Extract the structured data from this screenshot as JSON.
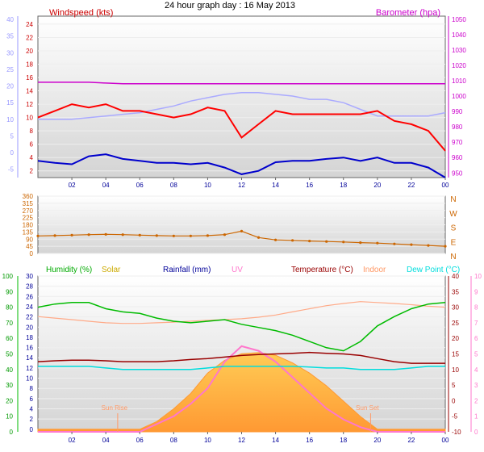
{
  "title": "24 hour graph day : 16 May 2013",
  "x_ticks": [
    "02",
    "04",
    "06",
    "08",
    "10",
    "12",
    "14",
    "16",
    "18",
    "20",
    "22",
    "00"
  ],
  "colors": {
    "wind": "#ff0000",
    "wind_low": "#0000cc",
    "baro": "#cc00cc",
    "outer_left": "#9999ff",
    "dir": "#cc6600",
    "humidity": "#00bb00",
    "solar": "#ccaa00",
    "rain": "#000099",
    "uv": "#ff77cc",
    "temp": "#990000",
    "indoor": "#ff9966",
    "dew": "#00dddd",
    "tick": "#000099",
    "frame": "#666666"
  },
  "chart_data": [
    {
      "type": "line",
      "name": "wind-barometer",
      "labels": {
        "wind": "Windspeed (kts)",
        "baro": "Barometer (hpa)"
      },
      "wind_axis": {
        "ticks": [
          2,
          4,
          6,
          8,
          10,
          12,
          14,
          16,
          18,
          20,
          22,
          24
        ],
        "ylim": [
          1,
          25.2
        ]
      },
      "outer_axis": {
        "ticks": [
          -5,
          0,
          5,
          10,
          15,
          20,
          25,
          30,
          35,
          40
        ],
        "ylim": [
          -7.5,
          41
        ]
      },
      "baro_axis": {
        "ticks": [
          950,
          960,
          970,
          980,
          990,
          1000,
          1010,
          1020,
          1030,
          1040,
          1050
        ],
        "ylim": [
          947,
          1052
        ]
      },
      "x": [
        0,
        1,
        2,
        3,
        4,
        5,
        6,
        7,
        8,
        9,
        10,
        11,
        12,
        13,
        14,
        15,
        16,
        17,
        18,
        19,
        20,
        21,
        22,
        23,
        24
      ],
      "wind_gust": [
        10,
        11,
        12,
        11.5,
        12,
        11,
        11,
        10.5,
        10,
        10.5,
        11.5,
        11,
        7,
        9,
        11,
        10.5,
        10.5,
        10.5,
        10.5,
        10.5,
        11,
        9.5,
        9,
        8,
        5
      ],
      "wind_avg": [
        3.5,
        3.2,
        3,
        4.2,
        4.5,
        3.8,
        3.5,
        3.2,
        3.2,
        3,
        3.2,
        2.5,
        1.5,
        2,
        3.3,
        3.5,
        3.5,
        3.8,
        4,
        3.5,
        4,
        3.2,
        3.2,
        2.5,
        1
      ],
      "baro": [
        1009,
        1009,
        1009,
        1009,
        1008.5,
        1008,
        1008,
        1008,
        1008,
        1008,
        1008,
        1008,
        1008,
        1008,
        1008,
        1008,
        1008,
        1008,
        1008,
        1008,
        1008,
        1008,
        1008,
        1008,
        1008
      ],
      "outer_series": [
        10,
        10,
        10,
        10.5,
        11,
        11.5,
        12,
        13,
        14,
        15.5,
        16.5,
        17.5,
        18,
        18,
        17.5,
        17,
        16,
        16,
        15,
        13,
        11,
        11,
        11,
        11,
        12
      ]
    },
    {
      "type": "scatter",
      "name": "wind-direction",
      "y_ticks": [
        0,
        45,
        90,
        135,
        180,
        225,
        270,
        315,
        360
      ],
      "y_tick_labels": [
        "0",
        "45",
        "90",
        "135",
        "180",
        "225",
        "270",
        "315",
        "360"
      ],
      "ylim": [
        0,
        360
      ],
      "compass": [
        "N",
        "W",
        "S",
        "E",
        "N"
      ],
      "x": [
        0,
        1,
        2,
        3,
        4,
        5,
        6,
        7,
        8,
        9,
        10,
        11,
        12,
        13,
        14,
        15,
        16,
        17,
        18,
        19,
        20,
        21,
        22,
        23,
        24
      ],
      "direction": [
        110,
        112,
        115,
        118,
        120,
        118,
        115,
        112,
        110,
        110,
        112,
        118,
        140,
        100,
        85,
        82,
        78,
        75,
        72,
        68,
        65,
        60,
        55,
        50,
        45
      ]
    },
    {
      "type": "line",
      "name": "climate",
      "legend": [
        "Humidity (%)",
        "Solar",
        "Rainfall (mm)",
        "UV",
        "Temperature (°C)",
        "Indoor",
        "Dew Point (°C)"
      ],
      "humidity_axis": {
        "ticks": [
          0,
          10,
          20,
          30,
          40,
          50,
          60,
          70,
          80,
          90,
          100
        ],
        "ylim": [
          0,
          100
        ]
      },
      "rain_axis": {
        "ticks": [
          0,
          2,
          4,
          6,
          8,
          10,
          12,
          14,
          16,
          18,
          20,
          22,
          24,
          26,
          28,
          30
        ],
        "ylim": [
          -0.5,
          30
        ]
      },
      "temp_axis": {
        "ticks": [
          -10,
          -5,
          0,
          5,
          10,
          15,
          20,
          25,
          30,
          35,
          40
        ],
        "ylim": [
          -10,
          40
        ]
      },
      "uv_axis": {
        "ticks": [
          0,
          1,
          2,
          3,
          4,
          5,
          6,
          7,
          8,
          9,
          10
        ],
        "ylim": [
          0,
          10
        ]
      },
      "x": [
        0,
        1,
        2,
        3,
        4,
        5,
        6,
        7,
        8,
        9,
        10,
        11,
        12,
        13,
        14,
        15,
        16,
        17,
        18,
        19,
        20,
        21,
        22,
        23,
        24
      ],
      "humidity": [
        80,
        82,
        83,
        83,
        79,
        77,
        76,
        73,
        71,
        70,
        71,
        72,
        69,
        67,
        65,
        62,
        58,
        54,
        52,
        58,
        68,
        74,
        79,
        82,
        83
      ],
      "temperature": [
        12.5,
        12.8,
        13,
        13,
        12.8,
        12.5,
        12.5,
        12.5,
        12.8,
        13.2,
        13.5,
        14,
        14.5,
        14.8,
        15,
        15.2,
        15.5,
        15.2,
        15,
        14.5,
        13.5,
        12.5,
        12,
        12,
        12
      ],
      "indoor_temp": [
        27,
        26.5,
        26,
        25.5,
        25,
        24.8,
        24.8,
        25,
        25.2,
        25.5,
        25.8,
        26,
        26.3,
        26.8,
        27.5,
        28.5,
        29.5,
        30.5,
        31.2,
        31.8,
        31.5,
        31.2,
        30.8,
        30.3,
        30
      ],
      "dew_point": [
        11,
        11,
        11,
        11,
        10.5,
        10,
        10,
        10,
        10,
        10,
        10.5,
        11,
        11,
        11,
        11,
        11,
        10.8,
        10.5,
        10.5,
        10,
        10,
        10,
        10.5,
        11,
        11
      ],
      "solar_rainfall": [
        0,
        0,
        0,
        0,
        0,
        0,
        0,
        1.5,
        4,
        7,
        11,
        13.5,
        14.8,
        15,
        14.5,
        13,
        11,
        8.5,
        5.5,
        2.5,
        0,
        0,
        0,
        0,
        0
      ],
      "uv": [
        0,
        0,
        0,
        0,
        0,
        0,
        0,
        0.5,
        1,
        1.8,
        2.8,
        4.5,
        5.5,
        5.2,
        4.5,
        3.5,
        2.5,
        1.5,
        0.8,
        0.3,
        0,
        0,
        0,
        0,
        0
      ],
      "annotations": {
        "sunrise": {
          "label": "Sun Rise",
          "x": 4.7
        },
        "sunset": {
          "label": "Sun Set",
          "x": 19.6
        }
      }
    }
  ]
}
